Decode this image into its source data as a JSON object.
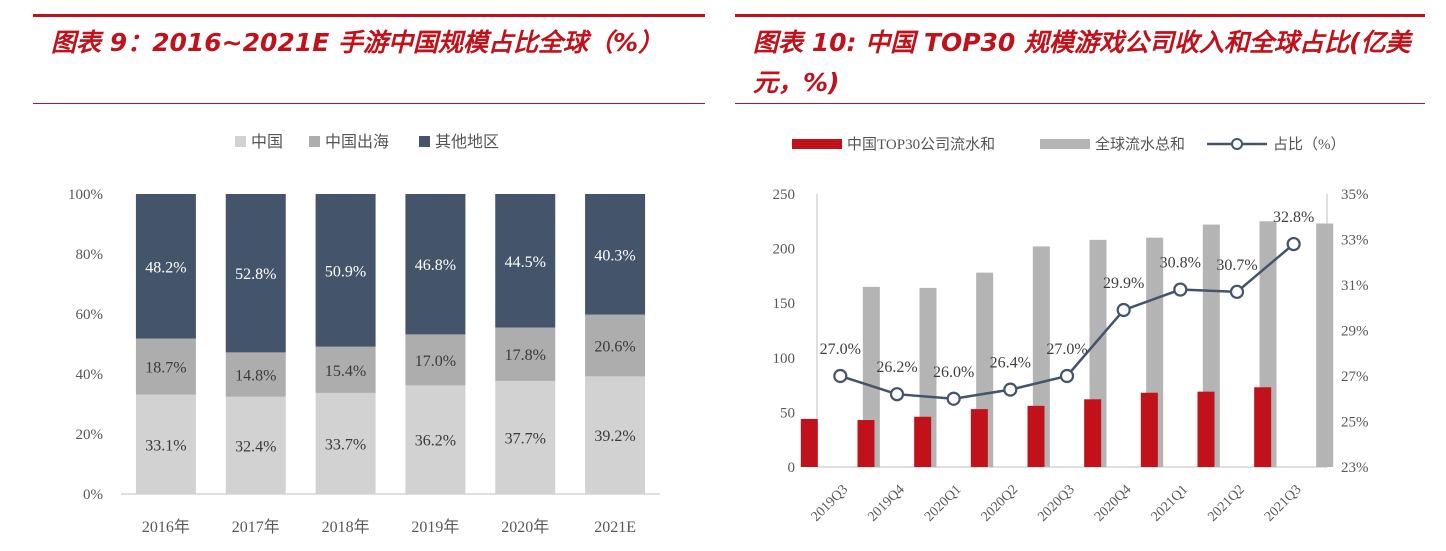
{
  "left_panel": {
    "title": "图表 9：2016~2021E 手游中国规模占比全球（%）",
    "chart_data": {
      "type": "bar",
      "stacked": true,
      "categories": [
        "2016年",
        "2017年",
        "2018年",
        "2019年",
        "2020年",
        "2021E"
      ],
      "series": [
        {
          "name": "中国",
          "values": [
            33.1,
            32.4,
            33.7,
            36.2,
            37.7,
            39.2
          ],
          "color": "#d2d2d2"
        },
        {
          "name": "中国出海",
          "values": [
            18.7,
            14.8,
            15.4,
            17.0,
            17.8,
            20.6
          ],
          "color": "#adadad"
        },
        {
          "name": "其他地区",
          "values": [
            48.2,
            52.8,
            50.9,
            46.8,
            44.5,
            40.3
          ],
          "color": "#44546a"
        }
      ],
      "data_labels": [
        [
          "33.1%",
          "32.4%",
          "33.7%",
          "36.2%",
          "37.7%",
          "39.2%"
        ],
        [
          "18.7%",
          "14.8%",
          "15.4%",
          "17.0%",
          "17.8%",
          "20.6%"
        ],
        [
          "48.2%",
          "52.8%",
          "50.9%",
          "46.8%",
          "44.5%",
          "40.3%"
        ]
      ],
      "ylim": [
        0,
        100
      ],
      "yticks": [
        "0%",
        "20%",
        "40%",
        "60%",
        "80%",
        "100%"
      ],
      "legend_position": "top"
    }
  },
  "right_panel": {
    "title": "图表 10: 中国 TOP30 规模游戏公司收入和全球占比(亿美元，%)",
    "chart_data": {
      "type": "bar",
      "categories": [
        "2019Q3",
        "2019Q4",
        "2020Q1",
        "2020Q2",
        "2020Q3",
        "2020Q4",
        "2021Q1",
        "2021Q2",
        "2021Q3"
      ],
      "series": [
        {
          "name": "中国TOP30公司流水和",
          "type": "bar",
          "axis": "left",
          "color": "#c1111a",
          "values": [
            44,
            43,
            46,
            53,
            56,
            62,
            68,
            69,
            73
          ]
        },
        {
          "name": "全球流水总和",
          "type": "bar",
          "axis": "left",
          "color": "#b4b4b4",
          "values": [
            165,
            164,
            178,
            202,
            208,
            210,
            222,
            225,
            223
          ]
        },
        {
          "name": "占比（%）",
          "type": "line",
          "axis": "right",
          "color": "#44546a",
          "values": [
            27.0,
            26.2,
            26.0,
            26.4,
            27.0,
            29.9,
            30.8,
            30.7,
            32.8
          ],
          "labels": [
            "27.0%",
            "26.2%",
            "26.0%",
            "26.4%",
            "27.0%",
            "29.9%",
            "30.8%",
            "30.7%",
            "32.8%"
          ]
        }
      ],
      "ylim_left": [
        0,
        250
      ],
      "yticks_left": [
        "0",
        "50",
        "100",
        "150",
        "200",
        "250"
      ],
      "ylim_right": [
        23,
        35
      ],
      "yticks_right": [
        "23%",
        "25%",
        "27%",
        "29%",
        "31%",
        "33%",
        "35%"
      ],
      "legend_position": "top"
    }
  }
}
